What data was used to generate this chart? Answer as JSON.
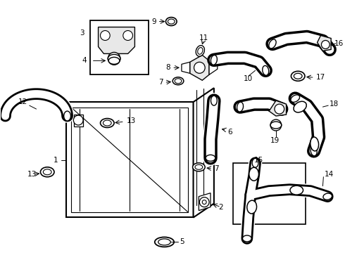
{
  "bg_color": "#ffffff",
  "fig_width": 4.9,
  "fig_height": 3.6,
  "dpi": 100
}
